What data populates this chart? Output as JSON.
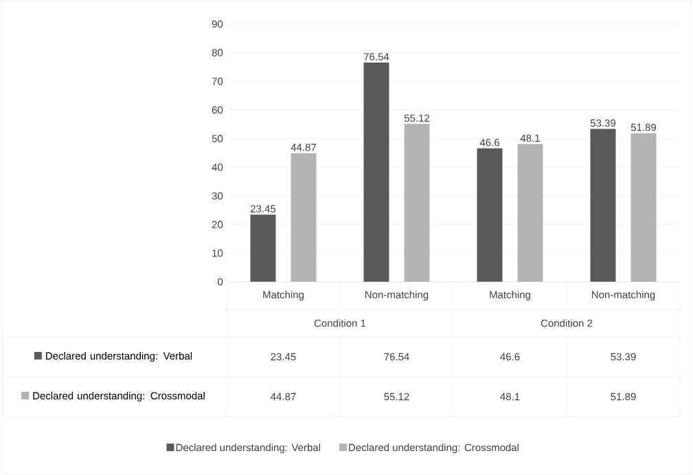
{
  "chart_data": {
    "type": "bar",
    "categories": [
      "Matching",
      "Non-matching",
      "Matching",
      "Non-matching"
    ],
    "annotations": [
      "Condition 1",
      "Condition 2"
    ],
    "series": [
      {
        "name": "Declared understanding: Verbal",
        "color": "#595959",
        "values": [
          23.45,
          76.54,
          46.6,
          53.39
        ],
        "value_labels": [
          "23.45",
          "76.54",
          "46.6",
          "53.39"
        ]
      },
      {
        "name": "Declared understanding: Crossmodal",
        "color": "#b3b3b3",
        "values": [
          44.87,
          55.12,
          48.1,
          51.89
        ],
        "value_labels": [
          "44.87",
          "55.12",
          "48.1",
          "51.89"
        ]
      }
    ],
    "ylim": [
      0,
      90
    ],
    "yticks": [
      0,
      10,
      20,
      30,
      40,
      50,
      60,
      70,
      80,
      90
    ],
    "grid": "y",
    "legend": "bottom"
  }
}
